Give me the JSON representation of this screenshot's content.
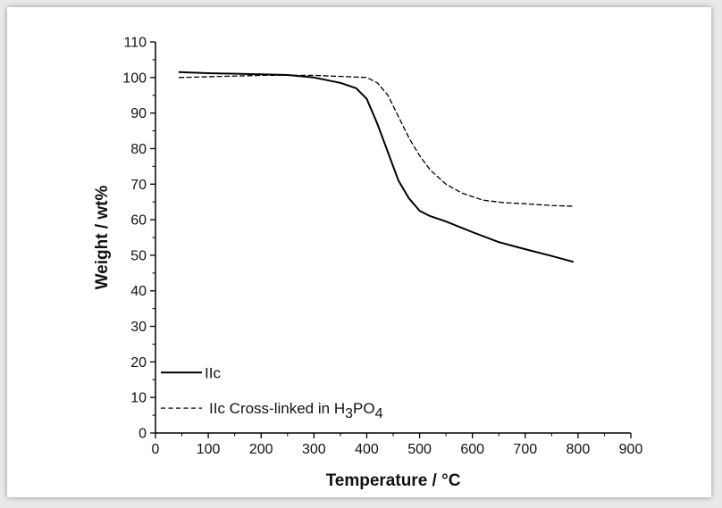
{
  "chart_data": {
    "type": "line",
    "xlabel": "Temperature / °C",
    "ylabel": "Weight / wt%",
    "xlim": [
      0,
      900
    ],
    "ylim": [
      0,
      110
    ],
    "xticks": [
      0,
      100,
      200,
      300,
      400,
      500,
      600,
      700,
      800,
      900
    ],
    "yticks": [
      0,
      10,
      20,
      30,
      40,
      50,
      60,
      70,
      80,
      90,
      100,
      110
    ],
    "grid": false,
    "legend_position": "bottom-left",
    "series": [
      {
        "name": "IIc",
        "style": "solid",
        "color": "#000000",
        "x": [
          45,
          100,
          200,
          250,
          300,
          350,
          380,
          400,
          420,
          440,
          460,
          480,
          500,
          520,
          550,
          600,
          650,
          700,
          750,
          790
        ],
        "y": [
          101.5,
          101.2,
          100.9,
          100.7,
          100.0,
          98.5,
          97.0,
          94.0,
          87.0,
          79.0,
          71.0,
          66.0,
          62.5,
          61.0,
          59.5,
          56.5,
          53.7,
          51.7,
          49.8,
          48.2
        ]
      },
      {
        "name": "IIc Cross-linked in H3PO4",
        "legend_parts": [
          "IIc Cross-linked in H",
          "3",
          "PO",
          "4"
        ],
        "style": "dashed",
        "color": "#000000",
        "x": [
          45,
          100,
          200,
          300,
          400,
          420,
          440,
          460,
          480,
          500,
          520,
          550,
          580,
          620,
          660,
          700,
          750,
          790
        ],
        "y": [
          100.0,
          100.2,
          100.6,
          100.6,
          100.0,
          98.5,
          95.0,
          89.0,
          83.0,
          78.0,
          74.0,
          70.0,
          67.5,
          65.5,
          64.8,
          64.5,
          64.0,
          63.8
        ]
      }
    ]
  }
}
